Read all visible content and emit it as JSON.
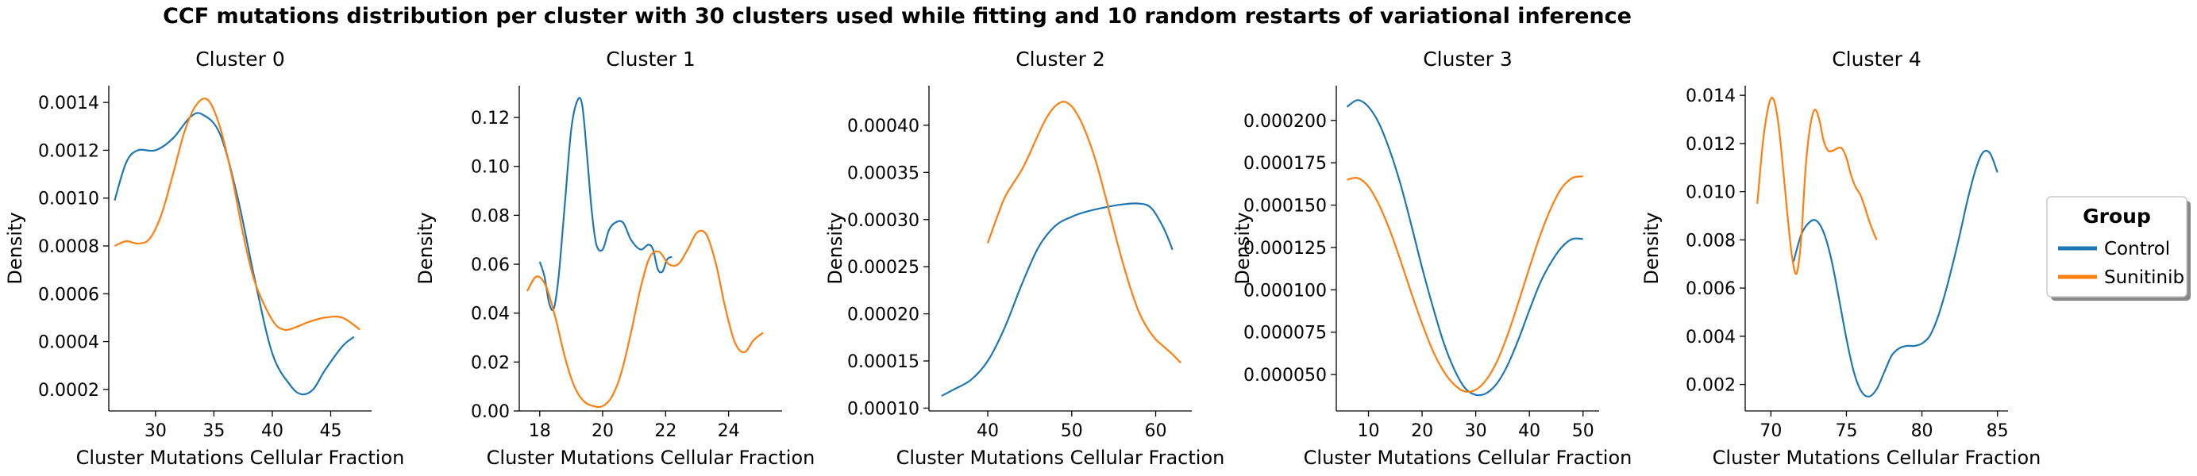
{
  "figure": {
    "title": "CCF mutations distribution per cluster with 30 clusters used while fitting and 10 random restarts of variational inference"
  },
  "legend": {
    "title": "Group",
    "entries": [
      {
        "label": "Control",
        "color": "#1f77b4"
      },
      {
        "label": "Sunitinib",
        "color": "#ff7f0e"
      }
    ],
    "placement": "right"
  },
  "chart_data": [
    {
      "type": "line",
      "title": "Cluster 0",
      "xlabel": "Cluster Mutations Cellular Fraction",
      "ylabel": "Density",
      "xlim": [
        26,
        48.5
      ],
      "ylim": [
        0.00011,
        0.00147
      ],
      "xticks": [
        30,
        35,
        40,
        45
      ],
      "yticks": [
        0.0002,
        0.0004,
        0.0006,
        0.0008,
        0.001,
        0.0012,
        0.0014
      ],
      "ytick_labels": [
        "0.0002",
        "0.0004",
        "0.0006",
        "0.0008",
        "0.0010",
        "0.0012",
        "0.0014"
      ],
      "series": [
        {
          "name": "Control",
          "color": "#1f77b4",
          "x": [
            26.5,
            27.5,
            28.5,
            30,
            31.5,
            33,
            34,
            35.5,
            37,
            38.5,
            40,
            41.5,
            42.5,
            43.5,
            44.5,
            46,
            47
          ],
          "y": [
            0.00099,
            0.00115,
            0.0012,
            0.0012,
            0.00125,
            0.00134,
            0.00135,
            0.00127,
            0.00101,
            0.00066,
            0.00035,
            0.00022,
            0.00018,
            0.0002,
            0.00028,
            0.00038,
            0.00042
          ]
        },
        {
          "name": "Sunitinib",
          "color": "#ff7f0e",
          "x": [
            26.5,
            27.5,
            28.5,
            29.5,
            30.5,
            31.5,
            32.5,
            33.5,
            34.5,
            35.5,
            36.5,
            37.5,
            38.5,
            40,
            41,
            42,
            43,
            44.5,
            46,
            47.5
          ],
          "y": [
            0.0008,
            0.00082,
            0.00081,
            0.00083,
            0.00093,
            0.0011,
            0.00128,
            0.00139,
            0.00141,
            0.0013,
            0.0011,
            0.00085,
            0.00065,
            0.00049,
            0.00045,
            0.00046,
            0.00048,
            0.0005,
            0.0005,
            0.00045
          ]
        }
      ]
    },
    {
      "type": "line",
      "title": "Cluster 1",
      "xlabel": "Cluster Mutations Cellular Fraction",
      "ylabel": "Density",
      "xlim": [
        17.35,
        25.7
      ],
      "ylim": [
        0,
        0.133
      ],
      "xticks": [
        18,
        20,
        22,
        24
      ],
      "yticks": [
        0,
        0.02,
        0.04,
        0.06,
        0.08,
        0.1,
        0.12
      ],
      "ytick_labels": [
        "0.00",
        "0.02",
        "0.04",
        "0.06",
        "0.08",
        "0.10",
        "0.12"
      ],
      "series": [
        {
          "name": "Control",
          "color": "#1f77b4",
          "x": [
            18.0,
            18.15,
            18.3,
            18.45,
            18.6,
            18.8,
            19.0,
            19.2,
            19.35,
            19.5,
            19.65,
            19.8,
            20.0,
            20.2,
            20.4,
            20.65,
            20.9,
            21.2,
            21.45,
            21.6,
            21.75,
            21.9,
            22.05,
            22.2
          ],
          "y": [
            0.061,
            0.055,
            0.044,
            0.042,
            0.055,
            0.085,
            0.115,
            0.127,
            0.125,
            0.105,
            0.082,
            0.068,
            0.066,
            0.074,
            0.077,
            0.077,
            0.07,
            0.066,
            0.068,
            0.066,
            0.058,
            0.057,
            0.062,
            0.063
          ]
        },
        {
          "name": "Sunitinib",
          "color": "#ff7f0e",
          "x": [
            17.6,
            17.9,
            18.2,
            18.5,
            18.8,
            19.1,
            19.4,
            19.7,
            20.0,
            20.3,
            20.6,
            20.9,
            21.2,
            21.5,
            21.8,
            22.1,
            22.4,
            22.7,
            23.0,
            23.3,
            23.6,
            23.9,
            24.2,
            24.5,
            24.8,
            25.1
          ],
          "y": [
            0.049,
            0.055,
            0.051,
            0.038,
            0.022,
            0.01,
            0.004,
            0.002,
            0.002,
            0.006,
            0.016,
            0.032,
            0.05,
            0.063,
            0.065,
            0.06,
            0.06,
            0.066,
            0.073,
            0.072,
            0.06,
            0.042,
            0.028,
            0.024,
            0.029,
            0.032
          ]
        }
      ]
    },
    {
      "type": "line",
      "title": "Cluster 2",
      "xlabel": "Cluster Mutations Cellular Fraction",
      "ylabel": "Density",
      "xlim": [
        33,
        64.3
      ],
      "ylim": [
        9.7e-05,
        0.000442
      ],
      "xticks": [
        40,
        50,
        60
      ],
      "yticks": [
        0.0001,
        0.00015,
        0.0002,
        0.00025,
        0.0003,
        0.00035,
        0.0004
      ],
      "ytick_labels": [
        "0.00010",
        "0.00015",
        "0.00020",
        "0.00025",
        "0.00030",
        "0.00035",
        "0.00040"
      ],
      "series": [
        {
          "name": "Control",
          "color": "#1f77b4",
          "x": [
            34.5,
            36,
            38,
            40,
            42,
            44,
            46,
            48,
            50,
            52,
            54,
            56,
            58,
            59.5,
            61,
            62
          ],
          "y": [
            0.000113,
            0.00012,
            0.00013,
            0.00015,
            0.000185,
            0.00023,
            0.00027,
            0.000293,
            0.000303,
            0.000309,
            0.000313,
            0.000316,
            0.000317,
            0.000312,
            0.00029,
            0.000268
          ]
        },
        {
          "name": "Sunitinib",
          "color": "#ff7f0e",
          "x": [
            40,
            41,
            42,
            43,
            44,
            45,
            46,
            47,
            48,
            49,
            50,
            51,
            52,
            53,
            54,
            55,
            56,
            57,
            58,
            59,
            60,
            61,
            62,
            63
          ],
          "y": [
            0.000275,
            0.0003,
            0.000323,
            0.000338,
            0.000352,
            0.00037,
            0.00039,
            0.000408,
            0.00042,
            0.000425,
            0.00042,
            0.000406,
            0.000385,
            0.000358,
            0.000325,
            0.00029,
            0.000257,
            0.000227,
            0.000202,
            0.000185,
            0.000173,
            0.000165,
            0.000157,
            0.000148
          ]
        }
      ]
    },
    {
      "type": "line",
      "title": "Cluster 3",
      "xlabel": "Cluster Mutations Cellular Fraction",
      "ylabel": "Density",
      "xlim": [
        4,
        53
      ],
      "ylim": [
        2.85e-05,
        0.0002205
      ],
      "xticks": [
        10,
        20,
        30,
        40,
        50
      ],
      "yticks": [
        5e-05,
        7.5e-05,
        0.0001,
        0.000125,
        0.00015,
        0.000175,
        0.0002
      ],
      "ytick_labels": [
        "0.000050",
        "0.000075",
        "0.000100",
        "0.000125",
        "0.000150",
        "0.000175",
        "0.000200"
      ],
      "series": [
        {
          "name": "Control",
          "color": "#1f77b4",
          "x": [
            6,
            8,
            10,
            12,
            14,
            16,
            18,
            20,
            22,
            24,
            26,
            28,
            30,
            32,
            34,
            36,
            38,
            40,
            42,
            44,
            46,
            48,
            50
          ],
          "y": [
            0.000208,
            0.000212,
            0.000208,
            0.000198,
            0.000182,
            0.000162,
            0.000138,
            0.000113,
            9e-05,
            6.9e-05,
            5.3e-05,
            4.2e-05,
            3.8e-05,
            3.9e-05,
            4.5e-05,
            5.6e-05,
            7.1e-05,
            8.8e-05,
            0.000104,
            0.000116,
            0.000125,
            0.00013,
            0.00013
          ]
        },
        {
          "name": "Sunitinib",
          "color": "#ff7f0e",
          "x": [
            6,
            8,
            10,
            12,
            14,
            16,
            18,
            20,
            22,
            24,
            26,
            28,
            30,
            32,
            34,
            36,
            38,
            40,
            42,
            44,
            46,
            48,
            50
          ],
          "y": [
            0.000165,
            0.000166,
            0.000161,
            0.00015,
            0.000135,
            0.000117,
            9.8e-05,
            8e-05,
            6.4e-05,
            5.2e-05,
            4.4e-05,
            4e-05,
            4.1e-05,
            4.7e-05,
            5.8e-05,
            7.4e-05,
            9.3e-05,
            0.000113,
            0.000132,
            0.000148,
            0.00016,
            0.000166,
            0.000167
          ]
        }
      ]
    },
    {
      "type": "line",
      "title": "Cluster 4",
      "xlabel": "Cluster Mutations Cellular Fraction",
      "ylabel": "Density",
      "xlim": [
        68.3,
        85.7
      ],
      "ylim": [
        0.0009,
        0.0144
      ],
      "xticks": [
        70,
        75,
        80,
        85
      ],
      "yticks": [
        0.002,
        0.004,
        0.006,
        0.008,
        0.01,
        0.012,
        0.014
      ],
      "ytick_labels": [
        "0.002",
        "0.004",
        "0.006",
        "0.008",
        "0.010",
        "0.012",
        "0.014"
      ],
      "series": [
        {
          "name": "Control",
          "color": "#1f77b4",
          "x": [
            71.5,
            72,
            72.5,
            73,
            73.5,
            74,
            74.5,
            75,
            75.5,
            76,
            76.5,
            77,
            77.5,
            78,
            78.5,
            79,
            79.5,
            80,
            80.5,
            81,
            81.5,
            82,
            82.5,
            83,
            83.5,
            84,
            84.5,
            85
          ],
          "y": [
            0.0071,
            0.0082,
            0.0087,
            0.0088,
            0.0083,
            0.0072,
            0.0056,
            0.0039,
            0.0025,
            0.0017,
            0.0015,
            0.0018,
            0.0025,
            0.0032,
            0.0035,
            0.0036,
            0.0036,
            0.0037,
            0.004,
            0.0047,
            0.0057,
            0.0069,
            0.0082,
            0.0096,
            0.0108,
            0.0116,
            0.0116,
            0.0108
          ]
        },
        {
          "name": "Sunitinib",
          "color": "#ff7f0e",
          "x": [
            69.1,
            69.5,
            69.9,
            70.2,
            70.5,
            70.8,
            71.1,
            71.4,
            71.7,
            72.0,
            72.3,
            72.6,
            72.9,
            73.2,
            73.5,
            73.8,
            74.1,
            74.4,
            74.7,
            75.0,
            75.3,
            75.6,
            75.9,
            76.2,
            76.5,
            76.8,
            77.0
          ],
          "y": [
            0.0095,
            0.0122,
            0.0137,
            0.0138,
            0.0128,
            0.011,
            0.009,
            0.0073,
            0.0066,
            0.008,
            0.011,
            0.0127,
            0.0134,
            0.013,
            0.0121,
            0.0117,
            0.0117,
            0.0118,
            0.0118,
            0.0114,
            0.0107,
            0.0102,
            0.0099,
            0.0094,
            0.0088,
            0.0083,
            0.008
          ]
        }
      ]
    }
  ]
}
